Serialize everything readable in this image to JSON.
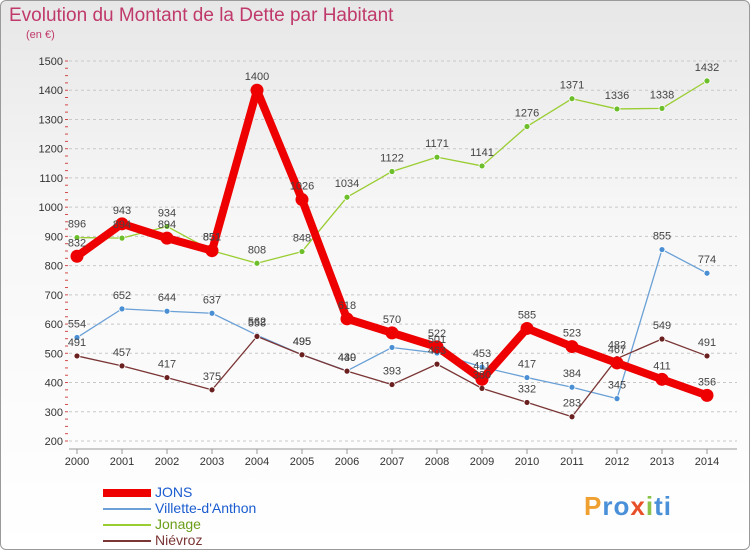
{
  "title": "Evolution du Montant de la Dette par Habitant",
  "unit": "(en €)",
  "logo": {
    "text": "Proxiti",
    "colors": [
      "#f0a030",
      "#4a90d9",
      "#4a90d9",
      "#e8502a",
      "#8bc34a",
      "#4a90d9",
      "#4a90d9"
    ]
  },
  "chart_data": {
    "type": "line",
    "x": [
      "2000",
      "2001",
      "2002",
      "2003",
      "2004",
      "2005",
      "2006",
      "2007",
      "2008",
      "2009",
      "2010",
      "2011",
      "2012",
      "2013",
      "2014"
    ],
    "ylim": [
      200,
      1500
    ],
    "yticks": [
      200,
      300,
      400,
      500,
      600,
      700,
      800,
      900,
      1000,
      1100,
      1200,
      1300,
      1400,
      1500
    ],
    "grid": "horizontal-dashed",
    "legend_position": "bottom-left",
    "series": [
      {
        "name": "Jonage",
        "color": "#9acd32",
        "point_color": "#6cbf2a",
        "label_color": "#444444",
        "values": [
          896,
          894,
          934,
          851,
          808,
          848,
          1034,
          1122,
          1171,
          1141,
          1276,
          1371,
          1336,
          1338,
          1432
        ]
      },
      {
        "name": "Villette-d'Anthon",
        "color": "#6aa0d6",
        "point_color": "#4a8fd4",
        "label_color": "#444444",
        "values": [
          554,
          652,
          644,
          637,
          562,
          495,
          440,
          null,
          null,
          453,
          417,
          384,
          345,
          855,
          774
        ]
      },
      {
        "name": "Niévroz",
        "color": "#7a3535",
        "point_color": "#6b2020",
        "label_color": "#444444",
        "values": [
          491,
          457,
          417,
          375,
          558,
          495,
          439,
          393,
          null,
          380,
          332,
          283,
          482,
          549,
          491
        ]
      },
      {
        "name": "JONS",
        "color": "#ee0000",
        "point_color": "#ee0000",
        "label_color": "#444444",
        "values": [
          832,
          943,
          894,
          851,
          1400,
          1026,
          618,
          570,
          522,
          411,
          585,
          523,
          467,
          411,
          356
        ]
      }
    ],
    "extra_points": [
      {
        "series": "Villette-d'Anthon",
        "x": "2007",
        "value": 520
      },
      {
        "series": "Villette-d'Anthon",
        "x": "2008",
        "value": 501
      },
      {
        "series": "Niévroz",
        "x": "2008",
        "value": 463
      }
    ],
    "data_labels": [
      {
        "x": "2000",
        "text": "896"
      },
      {
        "x": "2000",
        "text": "832"
      },
      {
        "x": "2000",
        "text": "554"
      },
      {
        "x": "2000",
        "text": "491"
      },
      {
        "x": "2001",
        "text": "943"
      },
      {
        "x": "2001",
        "text": "894"
      },
      {
        "x": "2001",
        "text": "652"
      },
      {
        "x": "2001",
        "text": "457"
      },
      {
        "x": "2002",
        "text": "934"
      },
      {
        "x": "2002",
        "text": "894"
      },
      {
        "x": "2002",
        "text": "644"
      },
      {
        "x": "2002",
        "text": "417"
      },
      {
        "x": "2003",
        "text": "851"
      },
      {
        "x": "2003",
        "text": "851"
      },
      {
        "x": "2003",
        "text": "637"
      },
      {
        "x": "2003",
        "text": "375"
      },
      {
        "x": "2004",
        "text": "1400"
      },
      {
        "x": "2004",
        "text": "808"
      },
      {
        "x": "2004",
        "text": "562"
      },
      {
        "x": "2004",
        "text": "558"
      },
      {
        "x": "2005",
        "text": "1026"
      },
      {
        "x": "2005",
        "text": "848"
      },
      {
        "x": "2005",
        "text": "495"
      },
      {
        "x": "2005",
        "text": "495"
      },
      {
        "x": "2006",
        "text": "1034"
      },
      {
        "x": "2006",
        "text": "618"
      },
      {
        "x": "2006",
        "text": "440"
      },
      {
        "x": "2006",
        "text": "439"
      },
      {
        "x": "2007",
        "text": "1122"
      },
      {
        "x": "2007",
        "text": "570"
      },
      {
        "x": "2007",
        "text": "393"
      },
      {
        "x": "2008",
        "text": "1171"
      },
      {
        "x": "2008",
        "text": "522"
      },
      {
        "x": "2008",
        "text": "501"
      },
      {
        "x": "2008",
        "text": "463"
      },
      {
        "x": "2009",
        "text": "1141"
      },
      {
        "x": "2009",
        "text": "453"
      },
      {
        "x": "2009",
        "text": "411"
      },
      {
        "x": "2009",
        "text": "380"
      },
      {
        "x": "2010",
        "text": "1276"
      },
      {
        "x": "2010",
        "text": "585"
      },
      {
        "x": "2010",
        "text": "417"
      },
      {
        "x": "2010",
        "text": "332"
      },
      {
        "x": "2011",
        "text": "1371"
      },
      {
        "x": "2011",
        "text": "523"
      },
      {
        "x": "2011",
        "text": "384"
      },
      {
        "x": "2011",
        "text": "283"
      },
      {
        "x": "2012",
        "text": "1336"
      },
      {
        "x": "2012",
        "text": "482"
      },
      {
        "x": "2012",
        "text": "467"
      },
      {
        "x": "2012",
        "text": "345"
      },
      {
        "x": "2013",
        "text": "1338"
      },
      {
        "x": "2013",
        "text": "855"
      },
      {
        "x": "2013",
        "text": "549"
      },
      {
        "x": "2013",
        "text": "411"
      },
      {
        "x": "2014",
        "text": "1432"
      },
      {
        "x": "2014",
        "text": "774"
      },
      {
        "x": "2014",
        "text": "491"
      },
      {
        "x": "2014",
        "text": "356"
      }
    ]
  }
}
